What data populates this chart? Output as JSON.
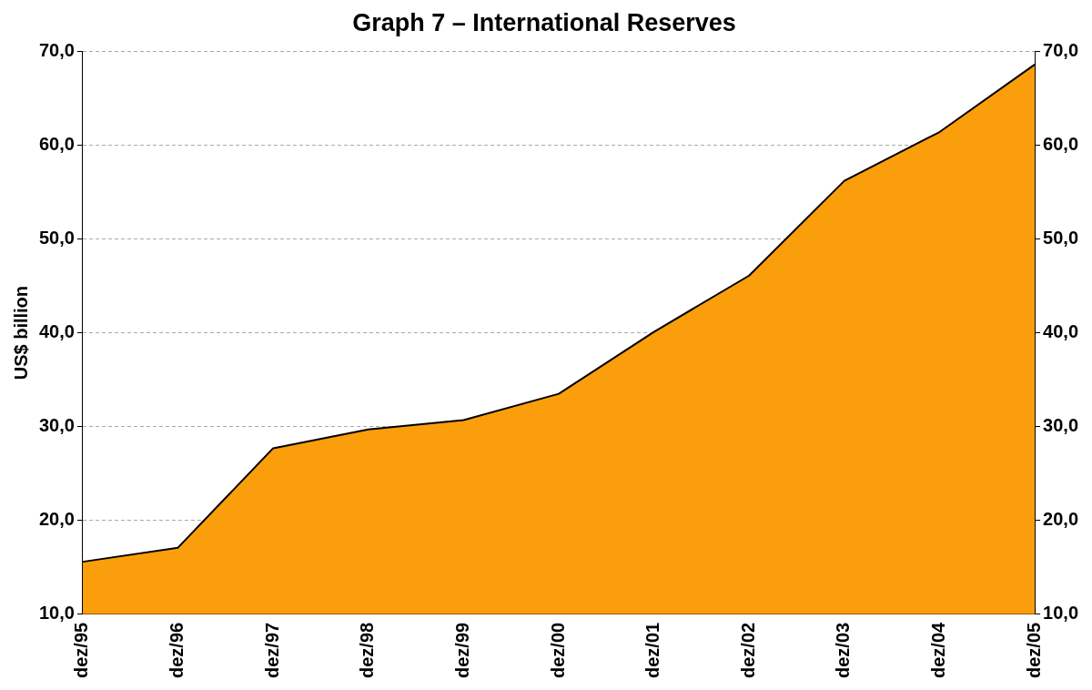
{
  "chart_data": {
    "type": "area",
    "title": "Graph 7 – International Reserves",
    "ylabel": "US$ billion",
    "categories": [
      "dez/95",
      "dez/96",
      "dez/97",
      "dez/98",
      "dez/99",
      "dez/00",
      "dez/01",
      "dez/02",
      "dez/03",
      "dez/04",
      "dez/05"
    ],
    "series": [
      {
        "color": "#fb9e0c",
        "values": [
          15.6,
          17.1,
          27.7,
          29.7,
          30.7,
          33.5,
          40.1,
          46.1,
          56.2,
          61.4,
          68.6
        ]
      }
    ],
    "ylim": [
      10,
      70
    ],
    "yticks": [
      {
        "value": 10,
        "label": "10,0"
      },
      {
        "value": 20,
        "label": "20,0"
      },
      {
        "value": 30,
        "label": "30,0"
      },
      {
        "value": 40,
        "label": "40,0"
      },
      {
        "value": 50,
        "label": "50,0"
      },
      {
        "value": 60,
        "label": "60,0"
      },
      {
        "value": 70,
        "label": "70,0"
      }
    ],
    "y2lim": [
      10,
      70
    ],
    "y2ticks": [
      {
        "value": 10,
        "label": "10,0"
      },
      {
        "value": 20,
        "label": "20,0"
      },
      {
        "value": 30,
        "label": "30,0"
      },
      {
        "value": 40,
        "label": "40,0"
      },
      {
        "value": 50,
        "label": "50,0"
      },
      {
        "value": 60,
        "label": "60,0"
      },
      {
        "value": 70,
        "label": "70,0"
      }
    ],
    "grid": "y",
    "legend": false
  }
}
